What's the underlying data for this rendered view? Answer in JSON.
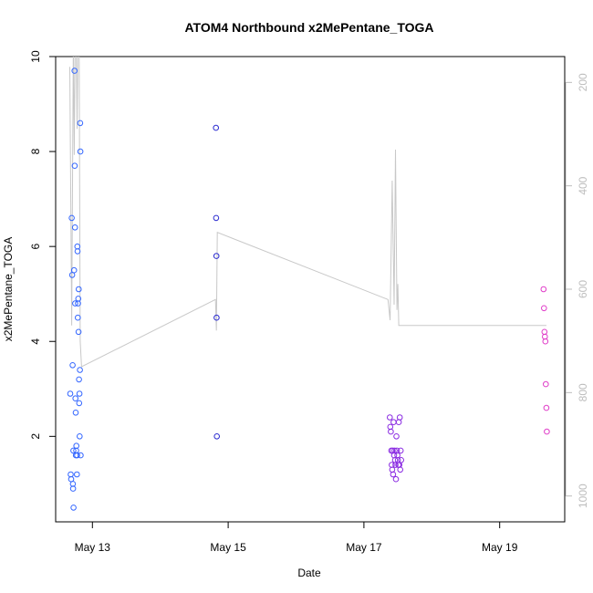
{
  "chart_data": {
    "type": "scatter",
    "title": "ATOM4 Northbound x2MePentane_TOGA",
    "xlabel": "Date",
    "ylabel": "x2MePentane_TOGA",
    "xlim": [
      "2018-05-12T11:00",
      "2018-05-19T23:00"
    ],
    "ylim": [
      0.2,
      10
    ],
    "x_ticks": [
      {
        "label": "May 13",
        "value": "2018-05-13T00:00"
      },
      {
        "label": "May 15",
        "value": "2018-05-15T00:00"
      },
      {
        "label": "May 17",
        "value": "2018-05-17T00:00"
      },
      {
        "label": "May 19",
        "value": "2018-05-19T00:00"
      }
    ],
    "y_ticks": [
      2,
      4,
      6,
      8,
      10
    ],
    "y2_ticks": [
      200,
      400,
      600,
      800,
      1000
    ],
    "y2lim": [
      1050,
      150
    ],
    "grid": false,
    "series": [
      {
        "color": "#3366ff",
        "x": [
          "2018-05-12T16:10",
          "2018-05-12T16:20",
          "2018-05-12T16:30",
          "2018-05-12T16:40",
          "2018-05-12T16:50",
          "2018-05-12T17:00",
          "2018-05-12T17:05",
          "2018-05-12T17:10",
          "2018-05-12T17:15",
          "2018-05-12T17:20",
          "2018-05-12T17:30",
          "2018-05-12T17:40",
          "2018-05-12T17:45",
          "2018-05-12T17:50",
          "2018-05-12T17:55",
          "2018-05-12T18:00",
          "2018-05-12T18:05",
          "2018-05-12T18:10",
          "2018-05-12T18:15",
          "2018-05-12T18:20",
          "2018-05-12T18:30",
          "2018-05-12T18:35",
          "2018-05-12T18:40",
          "2018-05-12T18:45",
          "2018-05-12T18:50",
          "2018-05-12T18:55",
          "2018-05-12T19:00",
          "2018-05-12T19:05",
          "2018-05-12T19:10",
          "2018-05-12T19:15",
          "2018-05-12T19:20",
          "2018-05-12T19:25",
          "2018-05-12T19:30",
          "2018-05-12T19:35",
          "2018-05-12T19:40",
          "2018-05-12T19:45",
          "2018-05-12T19:50"
        ],
        "y": [
          2.9,
          1.2,
          1.1,
          6.6,
          5.4,
          3.5,
          1.0,
          0.9,
          1.7,
          0.5,
          5.5,
          9.7,
          7.7,
          6.4,
          4.8,
          2.8,
          2.5,
          1.6,
          1.7,
          1.8,
          1.2,
          1.6,
          6.0,
          5.9,
          4.5,
          4.8,
          4.9,
          4.2,
          5.1,
          3.2,
          2.7,
          2.9,
          2.0,
          3.4,
          8.6,
          8.0,
          1.6
        ]
      },
      {
        "color": "#2a2ad0",
        "x": [
          "2018-05-14T19:40",
          "2018-05-14T19:45",
          "2018-05-14T19:50",
          "2018-05-14T19:55",
          "2018-05-14T20:00"
        ],
        "y": [
          8.5,
          6.6,
          5.8,
          4.5,
          2.0
        ]
      },
      {
        "color": "#8a2be2",
        "x": [
          "2018-05-17T09:10",
          "2018-05-17T09:20",
          "2018-05-17T09:30",
          "2018-05-17T09:40",
          "2018-05-17T09:50",
          "2018-05-17T10:00",
          "2018-05-17T10:10",
          "2018-05-17T10:20",
          "2018-05-17T10:30",
          "2018-05-17T10:40",
          "2018-05-17T10:50",
          "2018-05-17T11:00",
          "2018-05-17T11:10",
          "2018-05-17T11:20",
          "2018-05-17T11:30",
          "2018-05-17T11:40",
          "2018-05-17T11:50",
          "2018-05-17T12:00",
          "2018-05-17T12:10",
          "2018-05-17T12:20",
          "2018-05-17T12:30",
          "2018-05-17T12:40",
          "2018-05-17T12:50",
          "2018-05-17T13:00",
          "2018-05-17T13:10"
        ],
        "y": [
          2.4,
          2.2,
          2.1,
          1.7,
          1.4,
          1.3,
          1.7,
          1.2,
          2.3,
          1.6,
          1.7,
          1.5,
          1.4,
          1.1,
          2.0,
          1.7,
          1.6,
          1.5,
          1.4,
          2.3,
          1.4,
          2.4,
          1.3,
          1.7,
          1.5
        ]
      },
      {
        "color": "#e03cc8",
        "x": [
          "2018-05-19T15:30",
          "2018-05-19T15:40",
          "2018-05-19T15:50",
          "2018-05-19T16:00",
          "2018-05-19T16:10",
          "2018-05-19T16:20",
          "2018-05-19T16:30",
          "2018-05-19T16:40"
        ],
        "y": [
          5.1,
          4.7,
          4.2,
          4.1,
          4.0,
          3.1,
          2.6,
          2.1
        ]
      }
    ],
    "altitude_line": {
      "color": "#c8c8c8",
      "axis": "right",
      "x": [
        "2018-05-12T16:00",
        "2018-05-12T16:40",
        "2018-05-12T17:15",
        "2018-05-12T17:35",
        "2018-05-12T17:50",
        "2018-05-12T18:05",
        "2018-05-12T18:20",
        "2018-05-12T18:35",
        "2018-05-12T18:50",
        "2018-05-12T19:05",
        "2018-05-12T19:20",
        "2018-05-12T19:40",
        "2018-05-12T20:10",
        "2018-05-14T19:30",
        "2018-05-14T19:50",
        "2018-05-14T20:10",
        "2018-05-17T08:30",
        "2018-05-17T09:15",
        "2018-05-17T10:00",
        "2018-05-17T10:40",
        "2018-05-17T11:10",
        "2018-05-17T11:40",
        "2018-05-17T12:00",
        "2018-05-17T12:20",
        "2018-05-17T13:00",
        "2018-05-19T16:30"
      ],
      "y": [
        170,
        670,
        120,
        340,
        150,
        120,
        150,
        290,
        130,
        130,
        150,
        700,
        750,
        620,
        680,
        490,
        620,
        660,
        390,
        630,
        330,
        640,
        590,
        670,
        670,
        670
      ]
    }
  }
}
